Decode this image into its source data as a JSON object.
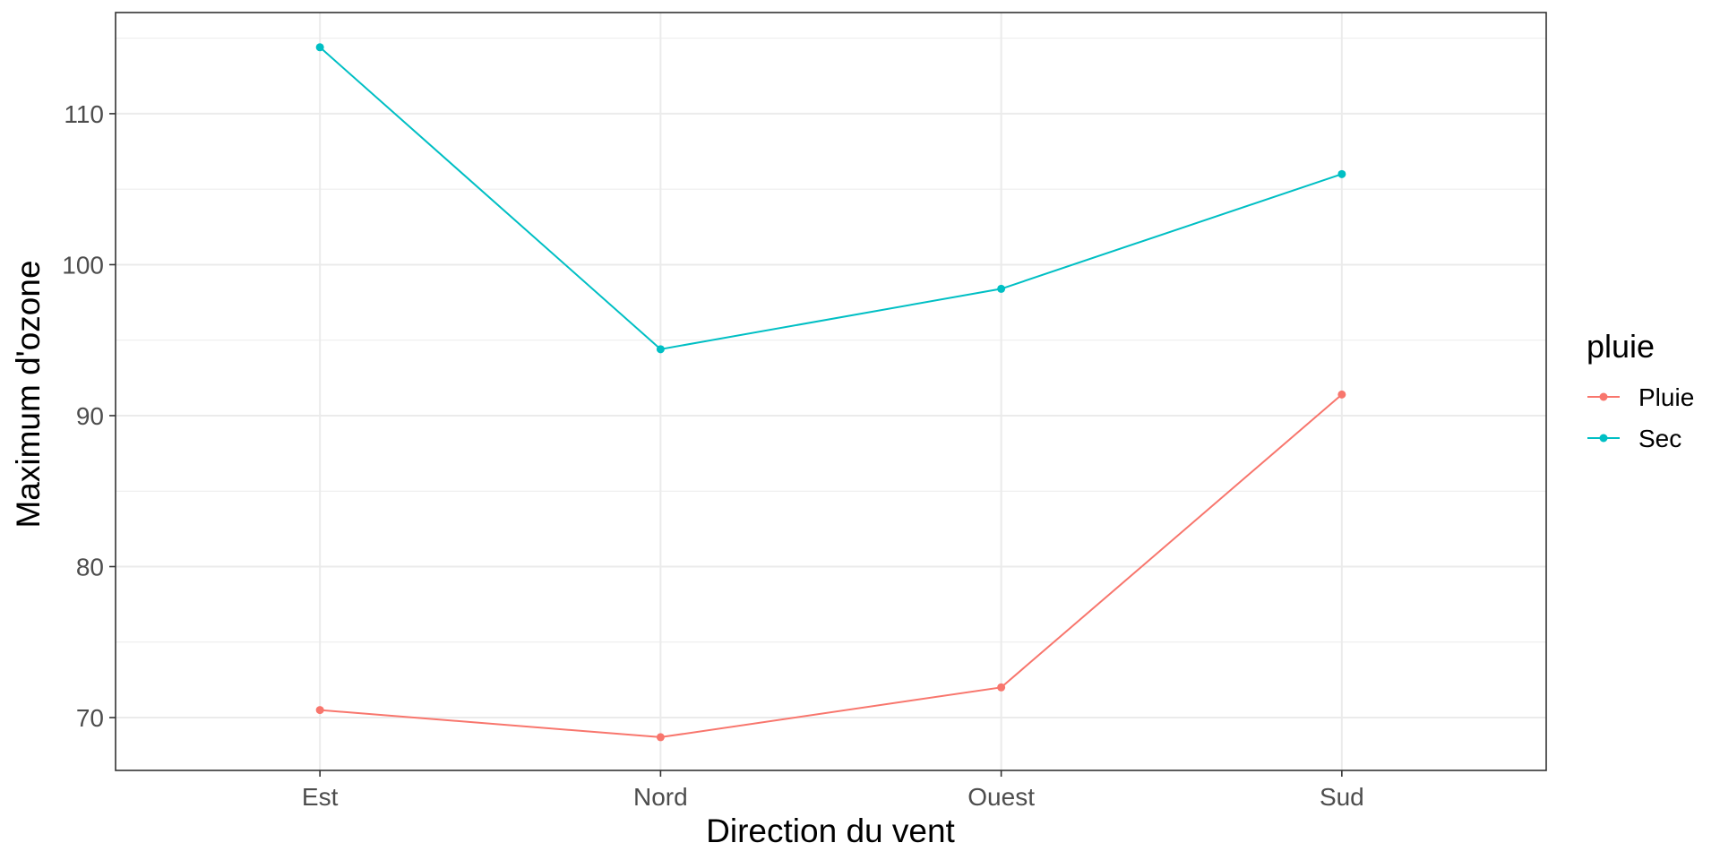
{
  "chart_data": {
    "type": "line",
    "categories": [
      "Est",
      "Nord",
      "Ouest",
      "Sud"
    ],
    "series": [
      {
        "name": "Pluie",
        "color": "#F8766D",
        "values": [
          70.5,
          68.7,
          72.0,
          91.4
        ]
      },
      {
        "name": "Sec",
        "color": "#00BFC4",
        "values": [
          114.4,
          94.4,
          98.4,
          106.0
        ]
      }
    ],
    "xlabel": "Direction du vent",
    "ylabel": "Maximum d'ozone",
    "ylim": [
      66.5,
      116.7
    ],
    "yticks": [
      70,
      80,
      90,
      100,
      110
    ],
    "grid": true,
    "legend": {
      "title": "pluie",
      "position": "right"
    }
  }
}
